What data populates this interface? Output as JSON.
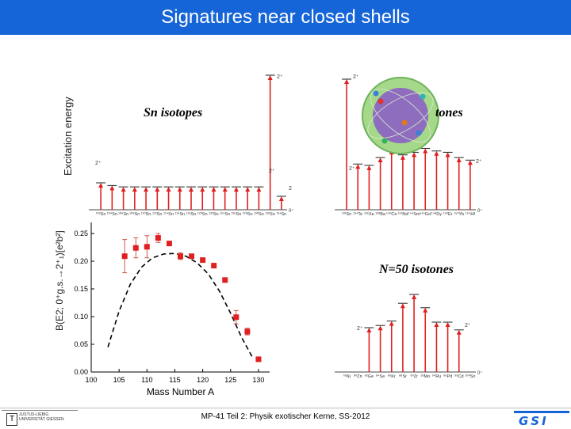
{
  "slide": {
    "title": "Signatures near closed shells",
    "footer": "MP-41 Teil 2: Physik exotischer Kerne, SS-2012",
    "ylabel_excitation": "Excitation energy",
    "label_sn": "Sn isotopes",
    "label_n82": "tones",
    "label_n50": "N=50 isotones",
    "logo_left": "JUSTUS-LIEBIG UNIVERSITÄT GIESSEN",
    "logo_right": "GSI"
  },
  "level_labels": {
    "two_plus": "2⁺",
    "zero_plus": "0⁺",
    "two": "2"
  },
  "chart_data": {
    "type": "scatter",
    "xlabel": "Mass Number A",
    "ylabel": "B(E2; 0⁺g.s.→2⁺₁)[e²b²]",
    "xlim": [
      100,
      132
    ],
    "ylim": [
      0,
      0.27
    ],
    "xticks": [
      "100",
      "105",
      "110",
      "115",
      "120",
      "125",
      "130"
    ],
    "yticks": [
      "0.00",
      "0.05",
      "0.10",
      "0.15",
      "0.20",
      "0.25"
    ],
    "series": [
      {
        "x": [
          106,
          108,
          110,
          112,
          114,
          116,
          118,
          120,
          122,
          124,
          126,
          128,
          130
        ],
        "y": [
          0.209,
          0.224,
          0.226,
          0.242,
          0.232,
          0.209,
          0.209,
          0.202,
          0.192,
          0.166,
          0.099,
          0.073,
          0.023
        ],
        "err": [
          0.03,
          0.018,
          0.02,
          0.008,
          0.004,
          0.006,
          0.004,
          0.003,
          0.004,
          0.004,
          0.012,
          0.006,
          0.003
        ]
      },
      {
        "x": [
          103,
          105,
          107,
          109,
          111,
          113,
          115,
          117,
          119,
          121,
          123,
          125,
          127,
          129
        ],
        "y": [
          0.045,
          0.11,
          0.158,
          0.189,
          0.206,
          0.213,
          0.214,
          0.209,
          0.197,
          0.177,
          0.146,
          0.106,
          0.062,
          0.025
        ]
      }
    ]
  },
  "sn_levels": {
    "isotope_labels": [
      "¹⁰²Sn",
      "¹⁰⁴Sn",
      "¹⁰⁶Sn",
      "¹⁰⁸Sn",
      "¹¹⁰Sn",
      "¹¹²Sn",
      "¹¹⁴Sn",
      "¹¹⁶Sn",
      "¹¹⁸Sn",
      "¹²⁰Sn",
      "¹²²Sn",
      "¹²⁴Sn",
      "¹²⁶Sn",
      "¹²⁸Sn",
      "¹³⁰Sn",
      "¹³²Sn",
      "¹³⁴Sn"
    ],
    "energies": [
      0.2,
      0.18,
      0.17,
      0.17,
      0.17,
      0.17,
      0.17,
      0.17,
      0.17,
      0.17,
      0.17,
      0.17,
      0.17,
      0.17,
      0.17,
      1.0,
      0.1
    ]
  },
  "n82_levels": {
    "isotope_labels": [
      "¹³²Sn",
      "¹³⁴Te",
      "¹³⁶Xe",
      "¹³⁸Ba",
      "¹⁴⁰Ce",
      "¹⁴²Nd",
      "¹⁴⁴Sm",
      "¹⁴⁶Gd",
      "¹⁴⁸Dy",
      "¹⁵⁰Er",
      "¹⁵²Yb",
      "¹⁵⁴Hf"
    ],
    "energies": [
      1.0,
      0.35,
      0.34,
      0.4,
      0.46,
      0.42,
      0.44,
      0.47,
      0.45,
      0.44,
      0.4,
      0.38
    ]
  },
  "n50_levels": {
    "isotope_labels": [
      "⁷⁸Ni",
      "⁸⁰Zn",
      "⁸²Ge",
      "⁸⁴Se",
      "⁸⁶Kr",
      "⁸⁸Sr",
      "⁹⁰Zr",
      "⁹²Mo",
      "⁹⁴Ru",
      "⁹⁶Pd",
      "⁹⁸Cd",
      "¹⁰⁰Sn"
    ],
    "energies": [
      0.0,
      0.0,
      0.4,
      0.42,
      0.46,
      0.62,
      0.7,
      0.58,
      0.45,
      0.45,
      0.38,
      0.0
    ]
  }
}
